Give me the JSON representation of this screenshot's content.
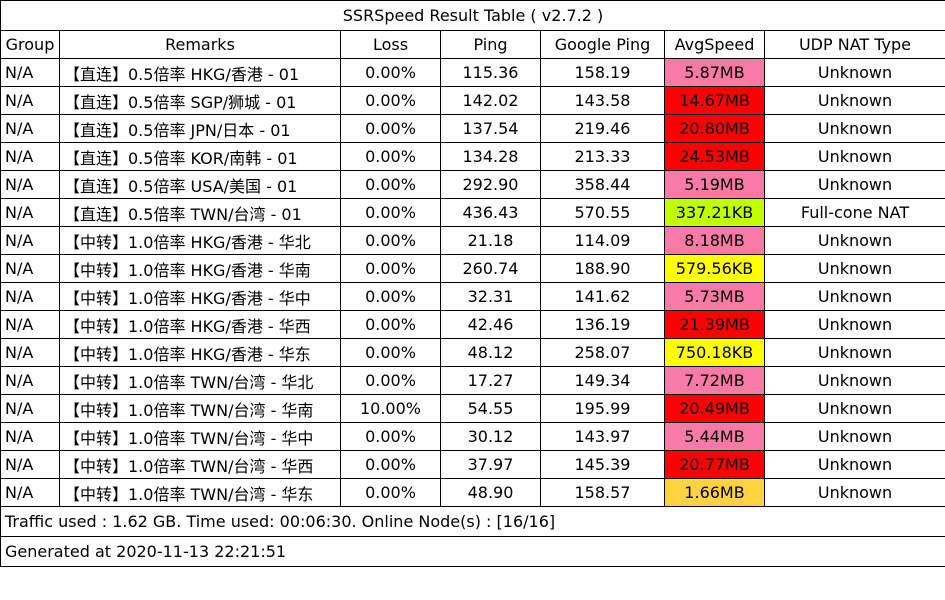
{
  "title": "SSRSpeed Result Table ( v2.7.2 )",
  "headers": [
    "Group",
    "Remarks",
    "Loss",
    "Ping",
    "Google Ping",
    "AvgSpeed",
    "UDP NAT Type"
  ],
  "rows": [
    {
      "group": "N/A",
      "remarks": "【直连】0.5倍率 HKG/香港 - 01",
      "loss": "0.00%",
      "ping": "115.36",
      "gping": "158.19",
      "speed": "5.87MB",
      "speed_color": "#f97aa6",
      "nat": "Unknown"
    },
    {
      "group": "N/A",
      "remarks": "【直连】0.5倍率 SGP/狮城 - 01",
      "loss": "0.00%",
      "ping": "142.02",
      "gping": "143.58",
      "speed": "14.67MB",
      "speed_color": "#ff0000",
      "nat": "Unknown"
    },
    {
      "group": "N/A",
      "remarks": "【直连】0.5倍率 JPN/日本 - 01",
      "loss": "0.00%",
      "ping": "137.54",
      "gping": "219.46",
      "speed": "20.80MB",
      "speed_color": "#ff0000",
      "nat": "Unknown"
    },
    {
      "group": "N/A",
      "remarks": "【直连】0.5倍率 KOR/南韩 - 01",
      "loss": "0.00%",
      "ping": "134.28",
      "gping": "213.33",
      "speed": "24.53MB",
      "speed_color": "#ff0000",
      "nat": "Unknown"
    },
    {
      "group": "N/A",
      "remarks": "【直连】0.5倍率 USA/美国 - 01",
      "loss": "0.00%",
      "ping": "292.90",
      "gping": "358.44",
      "speed": "5.19MB",
      "speed_color": "#f97aa6",
      "nat": "Unknown"
    },
    {
      "group": "N/A",
      "remarks": "【直连】0.5倍率 TWN/台湾 - 01",
      "loss": "0.00%",
      "ping": "436.43",
      "gping": "570.55",
      "speed": "337.21KB",
      "speed_color": "#c0ff00",
      "nat": "Full-cone NAT"
    },
    {
      "group": "N/A",
      "remarks": "【中转】1.0倍率 HKG/香港 - 华北",
      "loss": "0.00%",
      "ping": "21.18",
      "gping": "114.09",
      "speed": "8.18MB",
      "speed_color": "#f97aa6",
      "nat": "Unknown"
    },
    {
      "group": "N/A",
      "remarks": "【中转】1.0倍率 HKG/香港 - 华南",
      "loss": "0.00%",
      "ping": "260.74",
      "gping": "188.90",
      "speed": "579.56KB",
      "speed_color": "#ffff00",
      "nat": "Unknown"
    },
    {
      "group": "N/A",
      "remarks": "【中转】1.0倍率 HKG/香港 - 华中",
      "loss": "0.00%",
      "ping": "32.31",
      "gping": "141.62",
      "speed": "5.73MB",
      "speed_color": "#f97aa6",
      "nat": "Unknown"
    },
    {
      "group": "N/A",
      "remarks": "【中转】1.0倍率 HKG/香港 - 华西",
      "loss": "0.00%",
      "ping": "42.46",
      "gping": "136.19",
      "speed": "21.39MB",
      "speed_color": "#ff0000",
      "nat": "Unknown"
    },
    {
      "group": "N/A",
      "remarks": "【中转】1.0倍率 HKG/香港 - 华东",
      "loss": "0.00%",
      "ping": "48.12",
      "gping": "258.07",
      "speed": "750.18KB",
      "speed_color": "#ffff00",
      "nat": "Unknown"
    },
    {
      "group": "N/A",
      "remarks": "【中转】1.0倍率 TWN/台湾 - 华北",
      "loss": "0.00%",
      "ping": "17.27",
      "gping": "149.34",
      "speed": "7.72MB",
      "speed_color": "#f97aa6",
      "nat": "Unknown"
    },
    {
      "group": "N/A",
      "remarks": "【中转】1.0倍率 TWN/台湾 - 华南",
      "loss": "10.00%",
      "ping": "54.55",
      "gping": "195.99",
      "speed": "20.49MB",
      "speed_color": "#ff0000",
      "nat": "Unknown"
    },
    {
      "group": "N/A",
      "remarks": "【中转】1.0倍率 TWN/台湾 - 华中",
      "loss": "0.00%",
      "ping": "30.12",
      "gping": "143.97",
      "speed": "5.44MB",
      "speed_color": "#f97aa6",
      "nat": "Unknown"
    },
    {
      "group": "N/A",
      "remarks": "【中转】1.0倍率 TWN/台湾 - 华西",
      "loss": "0.00%",
      "ping": "37.97",
      "gping": "145.39",
      "speed": "20.77MB",
      "speed_color": "#ff0000",
      "nat": "Unknown"
    },
    {
      "group": "N/A",
      "remarks": "【中转】1.0倍率 TWN/台湾 - 华东",
      "loss": "0.00%",
      "ping": "48.90",
      "gping": "158.57",
      "speed": "1.66MB",
      "speed_color": "#ffd23f",
      "nat": "Unknown"
    }
  ],
  "footer": {
    "traffic": "Traffic used : 1.62 GB. Time used: 00:06:30. Online Node(s) : [16/16]",
    "generated": "Generated at 2020-11-13 22:21:51"
  }
}
